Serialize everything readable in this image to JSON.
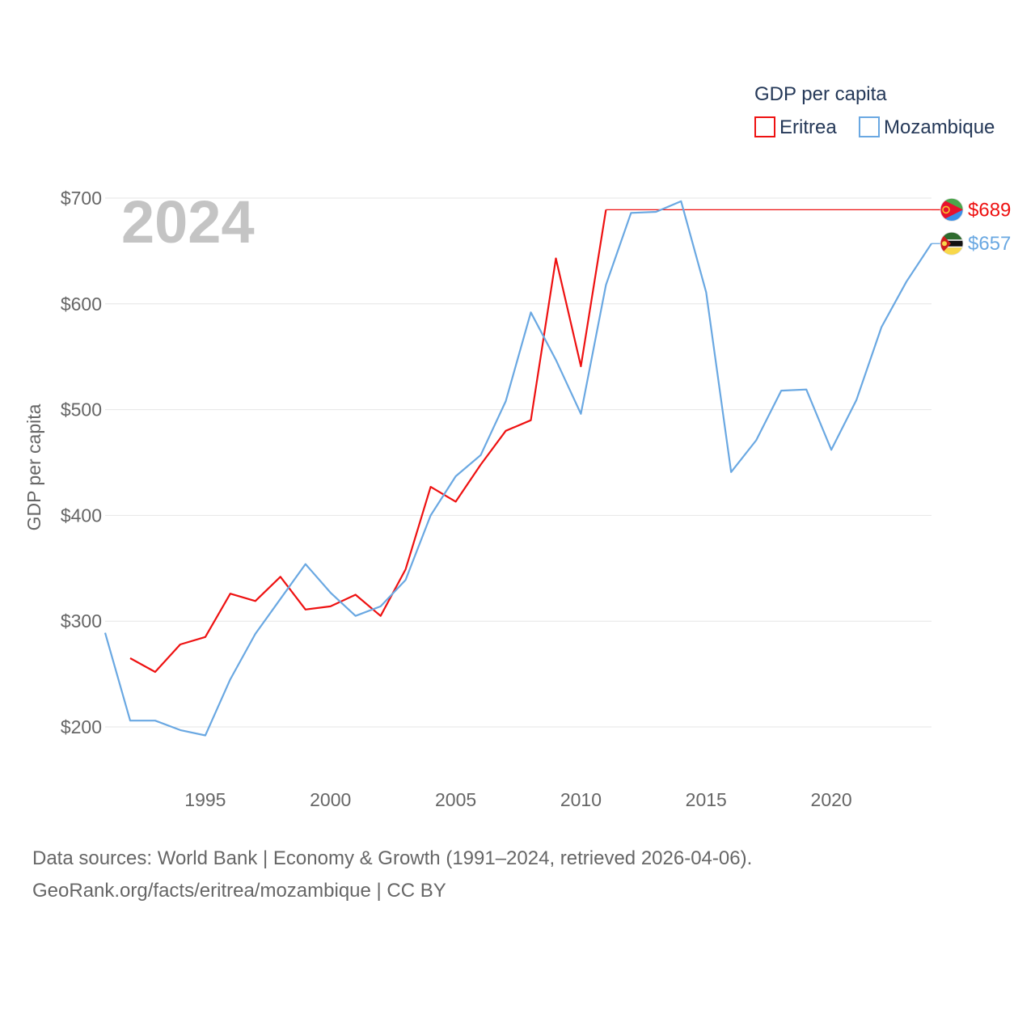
{
  "chart_data": {
    "type": "line",
    "ylabel": "GDP per capita",
    "legend_title": "GDP per capita",
    "legend_position": "top-right",
    "current_year": "2024",
    "x_range": [
      1991,
      2024
    ],
    "ylim": [
      150,
      720
    ],
    "y_ticks": [
      200,
      300,
      400,
      500,
      600,
      700
    ],
    "y_tick_labels": [
      "$200",
      "$300",
      "$400",
      "$500",
      "$600",
      "$700"
    ],
    "x_ticks": [
      1995,
      2000,
      2005,
      2010,
      2015,
      2020
    ],
    "x_tick_labels": [
      "1995",
      "2000",
      "2005",
      "2010",
      "2015",
      "2020"
    ],
    "grid": true,
    "series": [
      {
        "name": "Eritrea",
        "color": "#ee1111",
        "end_label": "$689",
        "flag": "eritrea-flag",
        "x": [
          1992,
          1993,
          1994,
          1995,
          1996,
          1997,
          1998,
          1999,
          2000,
          2001,
          2002,
          2003,
          2004,
          2005,
          2006,
          2007,
          2008,
          2009,
          2010,
          2011
        ],
        "values": [
          265,
          252,
          278,
          285,
          326,
          319,
          342,
          311,
          314,
          325,
          305,
          349,
          427,
          413,
          448,
          480,
          490,
          643,
          541,
          689
        ],
        "carry_forward_to": 2024
      },
      {
        "name": "Mozambique",
        "color": "#6aa8e2",
        "end_label": "$657",
        "flag": "mozambique-flag",
        "x": [
          1991,
          1992,
          1993,
          1994,
          1995,
          1996,
          1997,
          1998,
          1999,
          2000,
          2001,
          2002,
          2003,
          2004,
          2005,
          2006,
          2007,
          2008,
          2009,
          2010,
          2011,
          2012,
          2013,
          2014,
          2015,
          2016,
          2017,
          2018,
          2019,
          2020,
          2021,
          2022,
          2023,
          2024
        ],
        "values": [
          289,
          206,
          206,
          197,
          192,
          245,
          288,
          321,
          354,
          327,
          305,
          314,
          339,
          400,
          437,
          457,
          508,
          592,
          547,
          496,
          618,
          686,
          687,
          697,
          611,
          441,
          471,
          518,
          519,
          462,
          509,
          578,
          621,
          657
        ]
      }
    ]
  },
  "source": {
    "line1": "Data sources: World Bank | Economy & Growth (1991–2024, retrieved 2026-04-06).",
    "line2": "GeoRank.org/facts/eritrea/mozambique | CC BY"
  }
}
